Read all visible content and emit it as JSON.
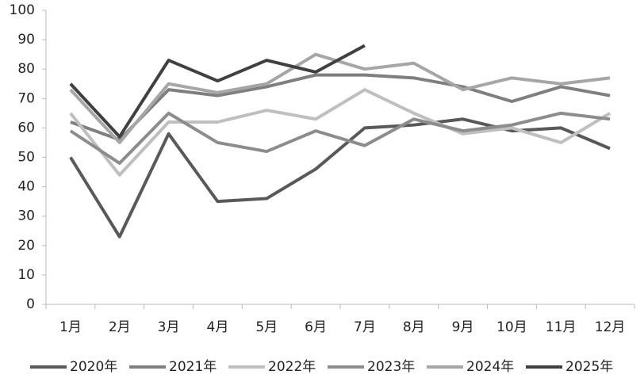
{
  "chart_data": {
    "type": "line",
    "categories": [
      "1月",
      "2月",
      "3月",
      "4月",
      "5月",
      "6月",
      "7月",
      "8月",
      "9月",
      "10月",
      "11月",
      "12月"
    ],
    "series": [
      {
        "name": "2020年",
        "color": "#595959",
        "values": [
          50,
          23,
          58,
          35,
          36,
          46,
          60,
          61,
          63,
          59,
          60,
          53
        ]
      },
      {
        "name": "2021年",
        "color": "#7f7f7f",
        "values": [
          62,
          56,
          73,
          71,
          74,
          78,
          78,
          77,
          74,
          69,
          74,
          71
        ]
      },
      {
        "name": "2022年",
        "color": "#bfbfbf",
        "values": [
          65,
          44,
          62,
          62,
          66,
          63,
          73,
          65,
          58,
          60,
          55,
          65
        ]
      },
      {
        "name": "2023年",
        "color": "#8c8c8c",
        "values": [
          59,
          48,
          65,
          55,
          52,
          59,
          54,
          63,
          59,
          61,
          65,
          63
        ]
      },
      {
        "name": "2024年",
        "color": "#a6a6a6",
        "values": [
          73,
          55,
          75,
          72,
          75,
          85,
          80,
          82,
          73,
          77,
          75,
          77
        ]
      },
      {
        "name": "2025年",
        "color": "#404040",
        "values": [
          75,
          57,
          83,
          76,
          83,
          79,
          88,
          null,
          null,
          null,
          null,
          null
        ]
      }
    ],
    "ylim": [
      0,
      100
    ],
    "yticks": [
      0,
      10,
      20,
      30,
      40,
      50,
      60,
      70,
      80,
      90,
      100
    ]
  }
}
